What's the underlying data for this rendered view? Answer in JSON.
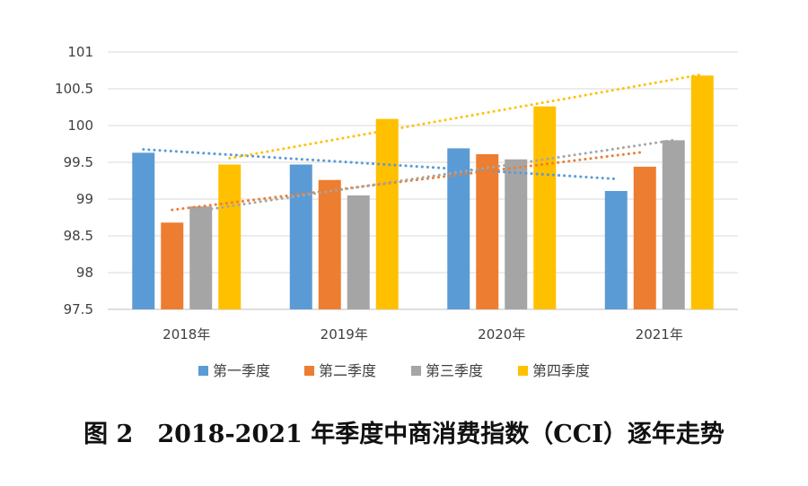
{
  "caption": "图 2　2018-2021 年季度中商消费指数（CCI）逐年走势",
  "chart_data": {
    "type": "bar",
    "categories": [
      "2018年",
      "2019年",
      "2020年",
      "2021年"
    ],
    "ylim": [
      97.5,
      101
    ],
    "yticks": [
      97.5,
      98,
      98.5,
      99,
      99.5,
      100,
      100.5,
      101
    ],
    "ytick_labels": [
      "97.5",
      "98",
      "98.5",
      "99",
      "99.5",
      "100",
      "100.5",
      "101"
    ],
    "grid": true,
    "legend_position": "bottom",
    "trendlines": "linear, dotted, one per series",
    "series": [
      {
        "name": "第一季度",
        "color": "#5B9BD5",
        "values": [
          99.63,
          99.47,
          99.69,
          99.11
        ]
      },
      {
        "name": "第二季度",
        "color": "#ED7D31",
        "values": [
          98.68,
          99.26,
          99.61,
          99.44
        ]
      },
      {
        "name": "第三季度",
        "color": "#A5A5A5",
        "values": [
          98.9,
          99.05,
          99.54,
          99.8
        ]
      },
      {
        "name": "第四季度",
        "color": "#FFC000",
        "values": [
          99.47,
          100.09,
          100.26,
          100.68
        ]
      }
    ]
  }
}
